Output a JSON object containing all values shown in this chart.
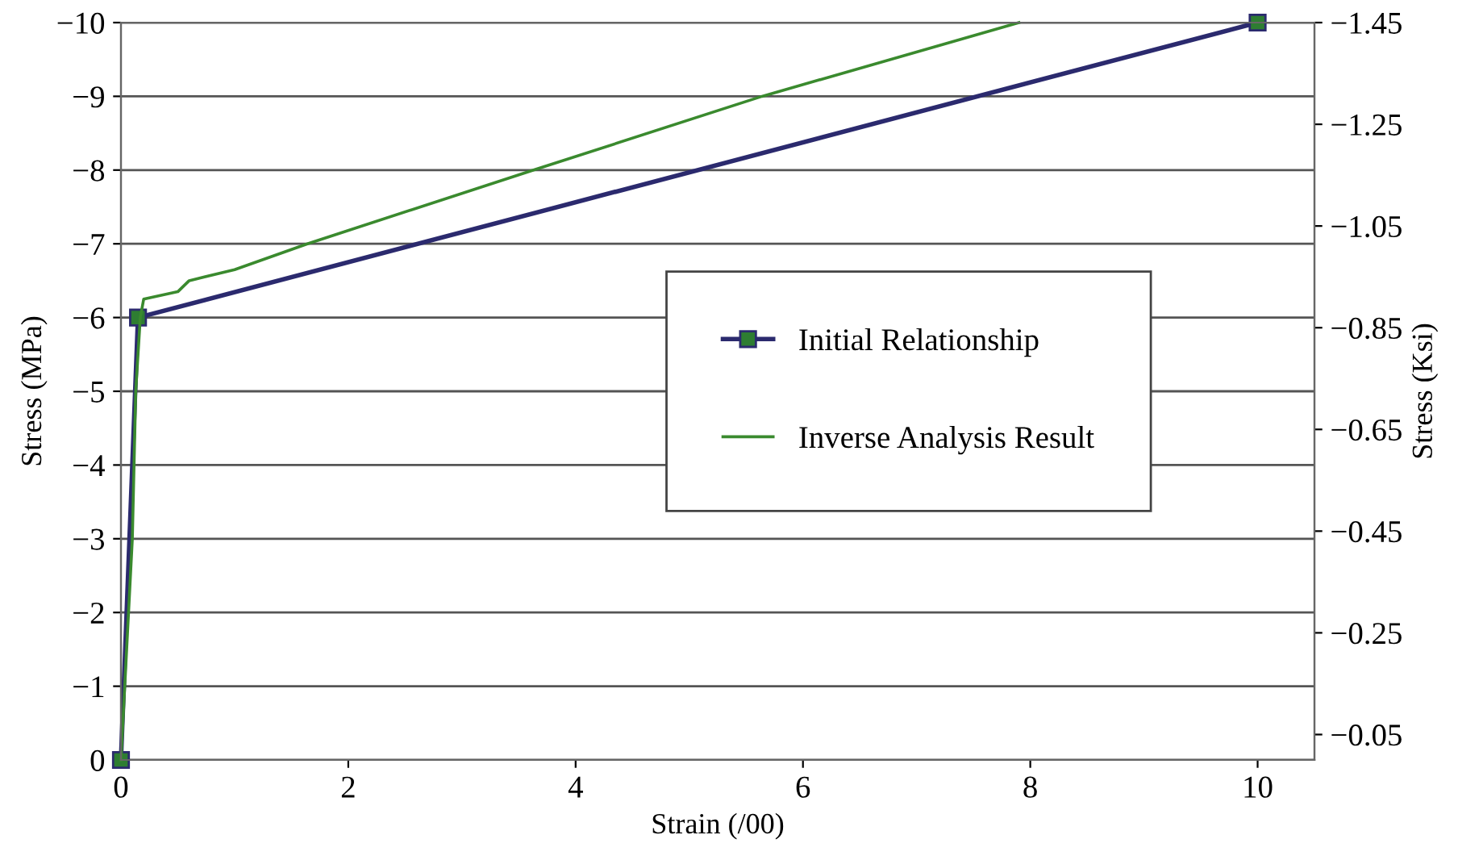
{
  "chart_data": {
    "type": "line",
    "xlabel": "Strain (/00)",
    "ylabel": "Stress (MPa)",
    "y2label": "Stress (Ksi)",
    "xlim": [
      0,
      10.5
    ],
    "xticks": [
      0,
      2,
      4,
      6,
      8,
      10
    ],
    "ylim": [
      0,
      -10
    ],
    "yticks": [
      0,
      -1,
      -2,
      -3,
      -4,
      -5,
      -6,
      -7,
      -8,
      -9,
      -10
    ],
    "y2lim": [
      0,
      -1.45
    ],
    "y2ticks": [
      -0.05,
      -0.25,
      -0.45,
      -0.65,
      -0.85,
      -1.05,
      -1.25,
      -1.45
    ],
    "grid": "y",
    "legend": "center right",
    "series": [
      {
        "name": "Initial Relationship",
        "color": "#2b2a6e",
        "marker": "square",
        "x": [
          0,
          0.15,
          10
        ],
        "values": [
          0,
          -6,
          -10
        ]
      },
      {
        "name": "Inverse Analysis Result",
        "color": "#3a8a2e",
        "marker": "none",
        "x": [
          0,
          0.05,
          0.1,
          0.13,
          0.17,
          0.2,
          0.5,
          0.6,
          1.0,
          1.64,
          3.63,
          5.64,
          7.9
        ],
        "values": [
          0,
          -1.5,
          -3,
          -5,
          -6,
          -6.25,
          -6.35,
          -6.5,
          -6.65,
          -7,
          -8,
          -9,
          -10
        ]
      }
    ]
  }
}
